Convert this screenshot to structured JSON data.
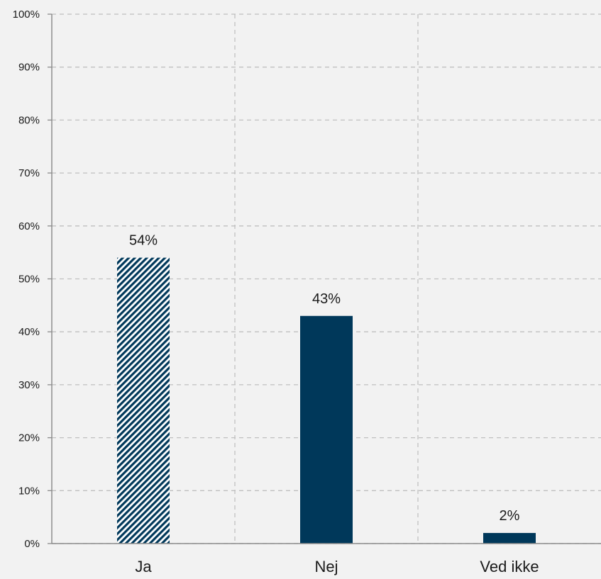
{
  "chart_data": {
    "type": "bar",
    "categories": [
      "Ja",
      "Nej",
      "Ved ikke"
    ],
    "values": [
      54,
      43,
      2
    ],
    "data_labels": [
      "54%",
      "43%",
      "2%"
    ],
    "title": "",
    "xlabel": "",
    "ylabel": "",
    "ylim": [
      0,
      100
    ],
    "y_ticks": [
      "0%",
      "10%",
      "20%",
      "30%",
      "40%",
      "50%",
      "60%",
      "70%",
      "80%",
      "90%",
      "100%"
    ],
    "grid": true,
    "grid_style": "dashed",
    "bar_styles": [
      "hatched",
      "solid",
      "solid"
    ],
    "colors": {
      "bar": "#00385a",
      "background": "#f2f2f2",
      "grid": "#c0c0c0",
      "axis": "#8c8c8c",
      "text": "#1a1a1a"
    }
  }
}
